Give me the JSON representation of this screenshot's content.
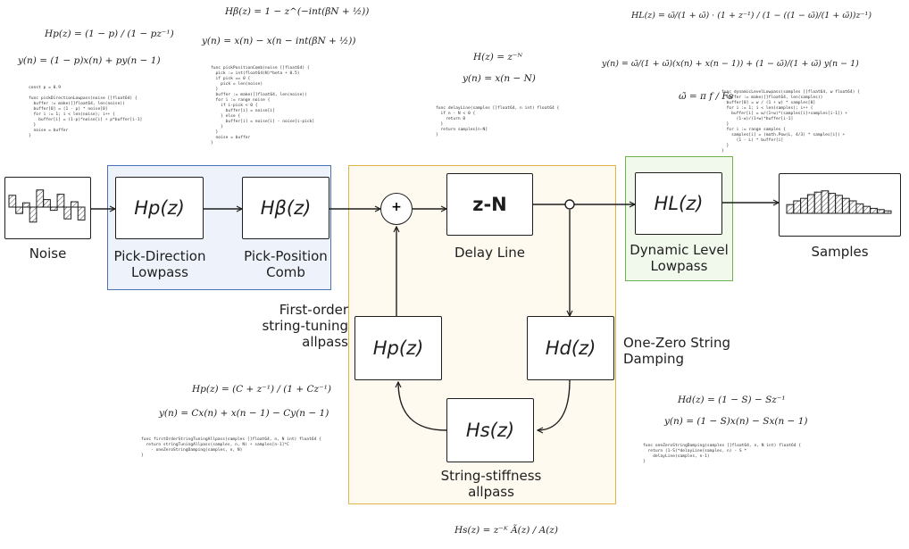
{
  "blocks": {
    "noise": {
      "caption": "Noise"
    },
    "pick_direction": {
      "label": "Hp(z)",
      "caption": "Pick-Direction\nLowpass"
    },
    "pick_position": {
      "label": "Hβ(z)",
      "caption": "Pick-Position\nComb"
    },
    "sum": {
      "label": "+"
    },
    "delay": {
      "label": "z-N",
      "caption": "Delay Line"
    },
    "dynamic_level": {
      "label": "HL(z)",
      "caption": "Dynamic Level\nLowpass"
    },
    "samples": {
      "caption": "Samples"
    },
    "tuning": {
      "label": "Hp(z)",
      "caption": "First-order\nstring-tuning\nallpass"
    },
    "damping": {
      "label": "Hd(z)",
      "caption": "One-Zero String\nDamping"
    },
    "stiffness": {
      "label": "Hs(z)",
      "caption": "String-stiffness\nallpass"
    }
  },
  "equations": {
    "hp_transfer": "Hp(z) = (1 − p) / (1 − pz⁻¹)",
    "hp_difference": "y(n) = (1 − p)x(n) + py(n − 1)",
    "hbeta_transfer": "Hβ(z) = 1 − z^(−int(βN + ½))",
    "hbeta_difference": "y(n) = x(n) − x(n − int(βN + ½))",
    "delay_transfer": "H(z) = z⁻ᴺ",
    "delay_difference": "y(n) = x(n − N)",
    "hl_transfer": "HL(z) = ω̃/(1 + ω̃) · (1 + z⁻¹) / (1 − ((1 − ω̃)/(1 + ω̃))z⁻¹)",
    "hl_difference": "y(n) = ω̃/(1 + ω̃)(x(n) + x(n − 1)) + (1 − ω̃)/(1 + ω̃) y(n − 1)",
    "omega": "ω̃ = π f / Fs",
    "tuning_transfer": "Hp(z) = (C + z⁻¹) / (1 + Cz⁻¹)",
    "tuning_difference": "y(n) = Cx(n) + x(n − 1) − Cy(n − 1)",
    "damping_transfer": "Hd(z) = (1 − S) − Sz⁻¹",
    "damping_difference": "y(n) = (1 − S)x(n) − Sx(n − 1)",
    "stiffness_transfer": "Hs(z) = z⁻ᴷ Ã(z) / A(z)"
  },
  "code": {
    "pick_direction": "const p = 0.9\n\nfunc pickDirectionLowpass(noise []float64) {\n  buffer := make([]float64, len(noise))\n  buffer[0] = (1 - p) * noise[0]\n  for i := 1; i < len(noise); i++ {\n    buffer[i] = (1-p)*noise[i] + p*buffer[i-1]\n  }\n  noise = buffer\n}",
    "pick_position": "func pickPositionComb(noise []float64) {\n  pick := int(float64(N)*beta + 0.5)\n  if pick == 0 {\n    pick = len(noise)\n  }\n  buffer := make([]float64, len(noise))\n  for i := range noise {\n    if i-pick < 0 {\n      buffer[i] = noise[i]\n    } else {\n      buffer[i] = noise[i] - noise[i-pick]\n    }\n  }\n  noise = buffer\n}",
    "delay": "func delayLine(samples []float64, n int) float64 {\n  if n - N < 0 {\n    return 0\n  }\n  return samples[n-N]\n}",
    "dynamic_level": "func dynamicLevelLowpass(samples []float64, w float64) {\n  buffer := make([]float64, len(samples))\n  buffer[0] = w / (1 + w) * samples[0]\n  for i := 1; i < len(samples); i++ {\n    buffer[i] = w/(1+w)*(samples[i]+samples[i-1]) +\n      (1-w)/(1+w)*buffer[i-1]\n  }\n  for i := range samples {\n    samples[i] = (math.Pow(L, 4/3) * samples[i]) +\n      (1 - L) * buffer[i]\n  }\n}",
    "tuning": "func firstOrderStringTuningAllpass(samples []float64, n, N int) float64 {\n  return stringTuningAllpass(samples, n, N) + samples[n-1]*C\n    - oneZeroStringDamping(samples, n, N)\n}",
    "damping": "func oneZeroStringDamping(samples []float64, n, N int) float64 {\n  return (1-S)*delayLine(samples, n) - S *\n    delayLine(samples, n-1)\n}"
  },
  "signal": {
    "noise_values": [
      0.55,
      -0.3,
      0.2,
      -0.7,
      0.8,
      0.35,
      -0.15,
      0.6,
      -0.55,
      0.25,
      -0.6
    ],
    "sample_values": [
      0.35,
      0.5,
      0.6,
      0.75,
      0.85,
      0.9,
      0.8,
      0.72,
      0.6,
      0.5,
      0.38,
      0.28,
      0.2,
      0.15,
      0.1
    ]
  },
  "colors": {
    "ink": "#1e1e1e",
    "excitation_region_stroke": "#4a72b8",
    "excitation_region_fill": "#eef3fb",
    "loop_region_stroke": "#e0b24a",
    "loop_region_fill": "#fffaf0",
    "output_region_stroke": "#6fb34f",
    "output_region_fill": "#f1f9ec",
    "keyword": "#2a4fc4"
  }
}
